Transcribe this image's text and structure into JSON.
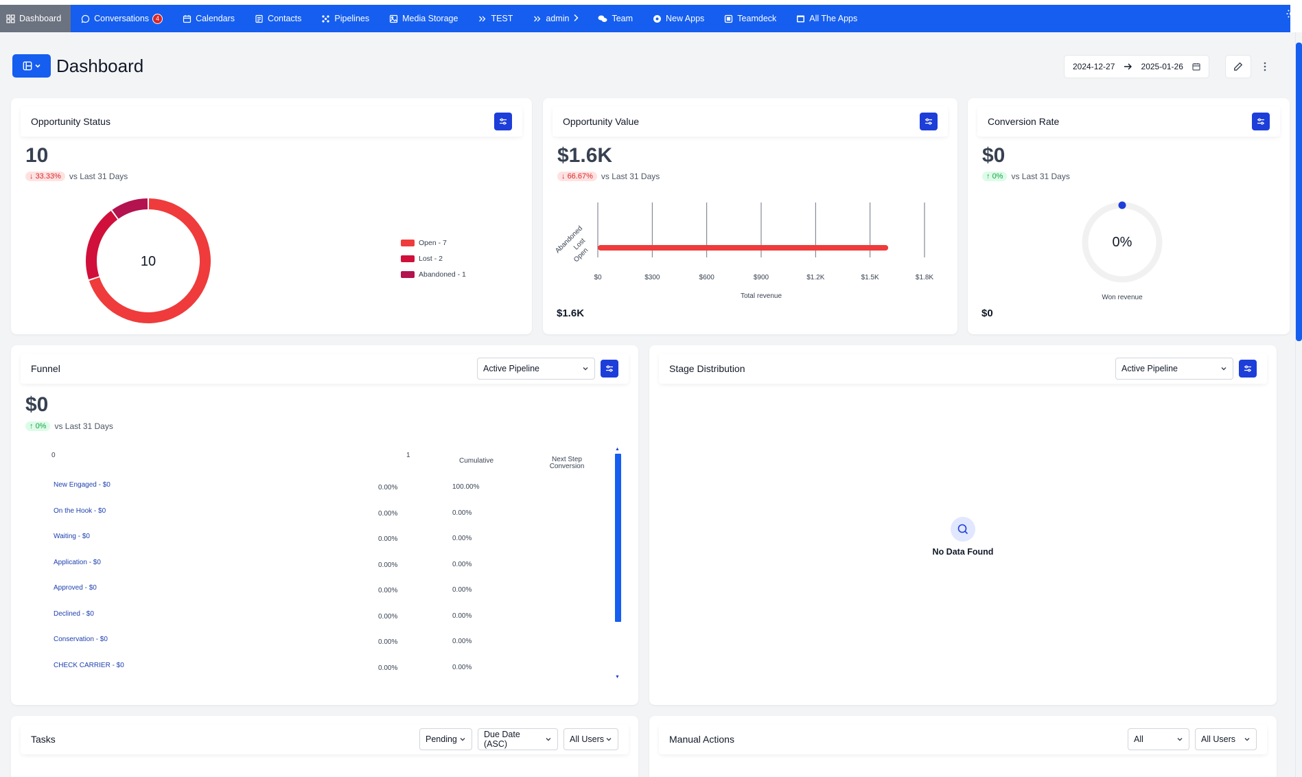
{
  "nav": {
    "items": [
      {
        "label": "Dashboard",
        "icon": "grid-icon"
      },
      {
        "label": "Conversations",
        "icon": "chat-icon",
        "badge": "4"
      },
      {
        "label": "Calendars",
        "icon": "calendar-icon"
      },
      {
        "label": "Contacts",
        "icon": "contacts-icon"
      },
      {
        "label": "Pipelines",
        "icon": "pipelines-icon"
      },
      {
        "label": "Media Storage",
        "icon": "image-icon"
      },
      {
        "label": "TEST",
        "icon": "double-chevron-icon"
      },
      {
        "label": "admin",
        "icon": "double-chevron-icon"
      },
      {
        "label": "Team",
        "icon": "team-icon"
      },
      {
        "label": "New Apps",
        "icon": "circle-icon"
      },
      {
        "label": "Teamdeck",
        "icon": "box-icon"
      },
      {
        "label": "All The Apps",
        "icon": "app-icon"
      }
    ]
  },
  "header": {
    "title": "Dashboard",
    "date_start": "2024-12-27",
    "date_end": "2025-01-26"
  },
  "opportunity_status": {
    "title": "Opportunity Status",
    "value": "10",
    "delta": "33.33%",
    "delta_dir": "down",
    "compare": "vs Last 31 Days",
    "center_label": "10",
    "legend": [
      {
        "label": "Open - 7",
        "color": "#ef3b3b"
      },
      {
        "label": "Lost - 2",
        "color": "#d0103a"
      },
      {
        "label": "Abandoned - 1",
        "color": "#b3134f"
      }
    ]
  },
  "opportunity_value": {
    "title": "Opportunity Value",
    "value": "$1.6K",
    "delta": "66.67%",
    "delta_dir": "down",
    "compare": "vs Last 31 Days",
    "footer": "$1.6K"
  },
  "conversion_rate": {
    "title": "Conversion Rate",
    "value": "$0",
    "delta": "0%",
    "delta_dir": "up",
    "compare": "vs Last 31 Days",
    "gauge_label": "0%",
    "gauge_caption": "Won revenue",
    "footer": "$0"
  },
  "funnel": {
    "title": "Funnel",
    "pipeline": "Active Pipeline",
    "value": "$0",
    "delta": "0%",
    "delta_dir": "up",
    "compare": "vs Last 31 Days",
    "axis_min": "0",
    "axis_max": "1",
    "col_cumulative": "Cumulative",
    "col_next_1": "Next Step",
    "col_next_2": "Conversion",
    "rows": [
      {
        "label": "New Engaged - $0",
        "cumulative": "0.00%",
        "next": "100.00%"
      },
      {
        "label": "On the Hook - $0",
        "cumulative": "0.00%",
        "next": "0.00%"
      },
      {
        "label": "Waiting - $0",
        "cumulative": "0.00%",
        "next": "0.00%"
      },
      {
        "label": "Application - $0",
        "cumulative": "0.00%",
        "next": "0.00%"
      },
      {
        "label": "Approved - $0",
        "cumulative": "0.00%",
        "next": "0.00%"
      },
      {
        "label": "Declined - $0",
        "cumulative": "0.00%",
        "next": "0.00%"
      },
      {
        "label": "Conservation - $0",
        "cumulative": "0.00%",
        "next": "0.00%"
      },
      {
        "label": "CHECK CARRIER - $0",
        "cumulative": "0.00%",
        "next": "0.00%"
      }
    ]
  },
  "stage_distribution": {
    "title": "Stage Distribution",
    "pipeline": "Active Pipeline",
    "empty": "No Data Found"
  },
  "tasks": {
    "title": "Tasks",
    "status": "Pending",
    "sort": "Due Date (ASC)",
    "users": "All Users"
  },
  "manual_actions": {
    "title": "Manual Actions",
    "filter": "All",
    "users": "All Users"
  },
  "chart_data": [
    {
      "type": "pie",
      "title": "Opportunity Status",
      "categories": [
        "Open",
        "Lost",
        "Abandoned"
      ],
      "values": [
        7,
        2,
        1
      ]
    },
    {
      "type": "bar",
      "title": "Opportunity Value",
      "orientation": "horizontal",
      "categories": [
        "Open",
        "Lost",
        "Abandoned"
      ],
      "values": [
        1600,
        0,
        0
      ],
      "xlabel": "Total revenue",
      "xticks": [
        "$0",
        "$300",
        "$600",
        "$900",
        "$1.2K",
        "$1.5K",
        "$1.8K"
      ],
      "xlim": [
        0,
        1800
      ]
    }
  ]
}
